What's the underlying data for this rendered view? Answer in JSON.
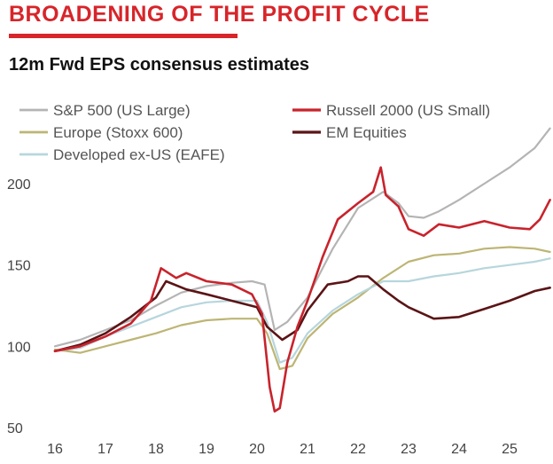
{
  "header": {
    "banner": "BROADENING OF THE PROFIT CYCLE",
    "subtitle": "12m Fwd EPS consensus estimates"
  },
  "chart_data": {
    "type": "line",
    "title": "12m Fwd EPS consensus estimates",
    "xlabel": "",
    "ylabel": "",
    "xlim": [
      2016,
      2025.9
    ],
    "ylim": [
      50,
      240
    ],
    "x_ticks": [
      {
        "value": 2016,
        "label": "16"
      },
      {
        "value": 2017,
        "label": "17"
      },
      {
        "value": 2018,
        "label": "18"
      },
      {
        "value": 2019,
        "label": "19"
      },
      {
        "value": 2020,
        "label": "20"
      },
      {
        "value": 2021,
        "label": "21"
      },
      {
        "value": 2022,
        "label": "22"
      },
      {
        "value": 2023,
        "label": "23"
      },
      {
        "value": 2024,
        "label": "24"
      },
      {
        "value": 2025,
        "label": "25"
      }
    ],
    "y_ticks": [
      {
        "value": 50,
        "label": "50"
      },
      {
        "value": 100,
        "label": "100"
      },
      {
        "value": 150,
        "label": "150"
      },
      {
        "value": 200,
        "label": "200"
      }
    ],
    "grid": false,
    "legend_position": "top-left",
    "series": [
      {
        "name": "S&P 500 (US Large)",
        "color": "#b4b4b4",
        "x": [
          2016,
          2016.5,
          2017,
          2017.5,
          2018,
          2018.5,
          2019,
          2019.5,
          2019.9,
          2020.15,
          2020.35,
          2020.6,
          2021,
          2021.5,
          2022,
          2022.5,
          2022.8,
          2023,
          2023.3,
          2023.6,
          2024,
          2024.5,
          2025,
          2025.5,
          2025.8
        ],
        "values": [
          100,
          104,
          110,
          116,
          125,
          133,
          137,
          139,
          140,
          138,
          110,
          115,
          130,
          160,
          185,
          195,
          188,
          180,
          179,
          183,
          190,
          200,
          210,
          222,
          234
        ]
      },
      {
        "name": "Russell 2000 (US Small)",
        "color": "#c8232c",
        "x": [
          2016,
          2016.5,
          2017,
          2017.5,
          2017.9,
          2018.1,
          2018.4,
          2018.6,
          2019,
          2019.5,
          2019.9,
          2020.1,
          2020.25,
          2020.35,
          2020.45,
          2020.6,
          2020.8,
          2021,
          2021.3,
          2021.6,
          2022,
          2022.3,
          2022.45,
          2022.55,
          2022.8,
          2023,
          2023.3,
          2023.6,
          2024,
          2024.5,
          2025,
          2025.4,
          2025.6,
          2025.8
        ],
        "values": [
          97,
          100,
          106,
          114,
          128,
          148,
          142,
          145,
          140,
          138,
          132,
          120,
          75,
          60,
          62,
          90,
          112,
          128,
          155,
          178,
          188,
          195,
          210,
          193,
          186,
          172,
          168,
          175,
          173,
          177,
          173,
          172,
          178,
          190
        ]
      },
      {
        "name": "Europe (Stoxx 600)",
        "color": "#bdb574",
        "x": [
          2016,
          2016.5,
          2017,
          2017.5,
          2018,
          2018.5,
          2019,
          2019.5,
          2020,
          2020.2,
          2020.45,
          2020.7,
          2021,
          2021.5,
          2022,
          2022.5,
          2023,
          2023.5,
          2024,
          2024.5,
          2025,
          2025.5,
          2025.8
        ],
        "values": [
          98,
          96,
          100,
          104,
          108,
          113,
          116,
          117,
          117,
          108,
          86,
          88,
          105,
          120,
          130,
          142,
          152,
          156,
          157,
          160,
          161,
          160,
          158
        ]
      },
      {
        "name": "EM Equities",
        "color": "#5b1416",
        "x": [
          2016,
          2016.5,
          2017,
          2017.5,
          2018,
          2018.2,
          2018.6,
          2019,
          2019.5,
          2020,
          2020.2,
          2020.5,
          2020.8,
          2021,
          2021.4,
          2021.8,
          2022,
          2022.2,
          2022.5,
          2022.8,
          2023,
          2023.5,
          2024,
          2024.5,
          2025,
          2025.5,
          2025.8
        ],
        "values": [
          97,
          101,
          108,
          118,
          130,
          140,
          135,
          132,
          128,
          124,
          112,
          104,
          110,
          122,
          138,
          140,
          143,
          143,
          135,
          128,
          124,
          117,
          118,
          123,
          128,
          134,
          136
        ]
      },
      {
        "name": "Developed ex-US (EAFE)",
        "color": "#b7d6dc",
        "x": [
          2016,
          2016.5,
          2017,
          2017.5,
          2018,
          2018.5,
          2019,
          2019.5,
          2020,
          2020.2,
          2020.45,
          2020.7,
          2021,
          2021.5,
          2022,
          2022.5,
          2023,
          2023.5,
          2024,
          2024.5,
          2025,
          2025.5,
          2025.8
        ],
        "values": [
          97,
          99,
          106,
          112,
          118,
          124,
          127,
          128,
          128,
          115,
          90,
          93,
          108,
          122,
          132,
          140,
          140,
          143,
          145,
          148,
          150,
          152,
          154
        ]
      }
    ]
  }
}
